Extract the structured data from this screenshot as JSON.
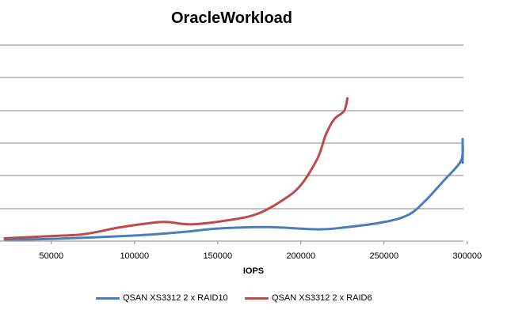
{
  "chart_data": {
    "type": "line",
    "title": "OracleWorkload",
    "xlabel": "IOPS",
    "ylabel": "",
    "x_ticks": [
      "50000",
      "100000",
      "150000",
      "200000",
      "250000",
      "300000"
    ],
    "xlim": [
      20000,
      310000
    ],
    "ylim": [
      0,
      7
    ],
    "grid": "horizontal",
    "legend": "bottom",
    "series": [
      {
        "name": "QSAN XS3312 2 x RAID10",
        "color": "#4a7ebb",
        "points": [
          [
            22000,
            0.06
          ],
          [
            50000,
            0.08
          ],
          [
            100000,
            0.2
          ],
          [
            130000,
            0.33
          ],
          [
            150000,
            0.45
          ],
          [
            180000,
            0.5
          ],
          [
            210000,
            0.42
          ],
          [
            225000,
            0.48
          ],
          [
            250000,
            0.68
          ],
          [
            265000,
            0.95
          ],
          [
            275000,
            1.45
          ],
          [
            285000,
            2.1
          ],
          [
            295000,
            2.75
          ],
          [
            299000,
            3.1
          ],
          [
            300000,
            3.5
          ],
          [
            302000,
            3.6
          ],
          [
            303000,
            2.8
          ]
        ]
      },
      {
        "name": "QSAN XS3312 2 x RAID6",
        "color": "#be4b48",
        "points": [
          [
            22000,
            0.1
          ],
          [
            50000,
            0.18
          ],
          [
            70000,
            0.25
          ],
          [
            90000,
            0.48
          ],
          [
            110000,
            0.65
          ],
          [
            120000,
            0.68
          ],
          [
            135000,
            0.6
          ],
          [
            160000,
            0.78
          ],
          [
            175000,
            1.0
          ],
          [
            190000,
            1.5
          ],
          [
            200000,
            2.0
          ],
          [
            210000,
            2.95
          ],
          [
            215000,
            3.8
          ],
          [
            220000,
            4.35
          ],
          [
            226000,
            4.65
          ],
          [
            228000,
            5.1
          ]
        ]
      }
    ]
  }
}
